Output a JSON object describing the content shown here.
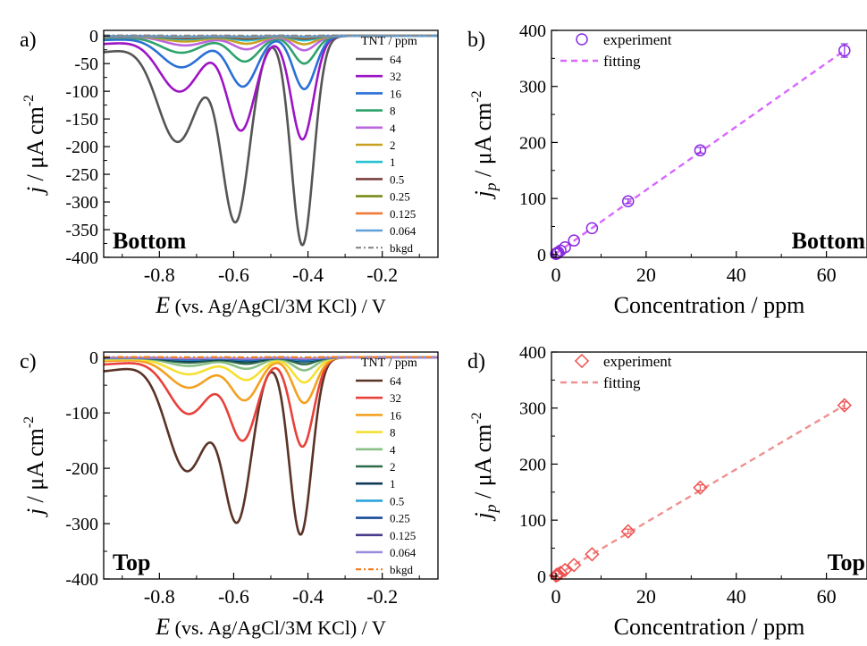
{
  "chart_data": [
    {
      "panel": "a)",
      "type": "line",
      "tag": "Bottom",
      "xlabel_sym": "E",
      "xlabel_rest": " (vs. Ag/AgCl/3M KCl) / V",
      "ylabel_sym": "j",
      "ylabel_rest": " / μA cm",
      "ylabel_sup": "-2",
      "xlim": [
        -0.95,
        -0.05
      ],
      "ylim": [
        -400,
        10
      ],
      "xticks": [
        -0.8,
        -0.6,
        -0.4,
        -0.2
      ],
      "yticks": [
        0,
        -50,
        -100,
        -150,
        -200,
        -250,
        -300,
        -350,
        -400
      ],
      "legend_title": "TNT / ppm",
      "series": [
        {
          "name": "64",
          "color": "#555555",
          "peaks": [
            [
              -0.75,
              188
            ],
            [
              -0.595,
              333
            ],
            [
              -0.415,
              378
            ]
          ]
        },
        {
          "name": "32",
          "color": "#9d14c4",
          "peaks": [
            [
              -0.745,
              99
            ],
            [
              -0.58,
              170
            ],
            [
              -0.415,
              187
            ]
          ]
        },
        {
          "name": "16",
          "color": "#2a6fd6",
          "peaks": [
            [
              -0.74,
              56
            ],
            [
              -0.575,
              91
            ],
            [
              -0.41,
              96
            ]
          ]
        },
        {
          "name": "8",
          "color": "#2ea36c",
          "peaks": [
            [
              -0.74,
              30
            ],
            [
              -0.57,
              46
            ],
            [
              -0.41,
              50
            ]
          ]
        },
        {
          "name": "4",
          "color": "#bb66dd",
          "peaks": [
            [
              -0.73,
              17
            ],
            [
              -0.565,
              24
            ],
            [
              -0.41,
              26
            ]
          ]
        },
        {
          "name": "2",
          "color": "#c8a020",
          "peaks": [
            [
              -0.73,
              10
            ],
            [
              -0.565,
              14
            ],
            [
              -0.41,
              15
            ]
          ]
        },
        {
          "name": "1",
          "color": "#22c2d0",
          "peaks": [
            [
              -0.73,
              6
            ],
            [
              -0.565,
              8
            ],
            [
              -0.41,
              8
            ]
          ]
        },
        {
          "name": "0.5",
          "color": "#7a4040",
          "peaks": [
            [
              -0.73,
              4
            ],
            [
              -0.565,
              5
            ],
            [
              -0.41,
              5
            ]
          ]
        },
        {
          "name": "0.25",
          "color": "#7a8a18",
          "peaks": [
            [
              -0.73,
              2.5
            ],
            [
              -0.565,
              3
            ],
            [
              -0.41,
              3
            ]
          ]
        },
        {
          "name": "0.125",
          "color": "#f07a3a",
          "peaks": [
            [
              -0.73,
              1.8
            ],
            [
              -0.565,
              2
            ],
            [
              -0.41,
              2
            ]
          ]
        },
        {
          "name": "0.064",
          "color": "#5f9fd8",
          "peaks": [
            [
              -0.73,
              1.2
            ],
            [
              -0.565,
              1.4
            ],
            [
              -0.41,
              1.4
            ]
          ]
        },
        {
          "name": "bkgd",
          "color": "#888888",
          "dashed": true,
          "peaks": [
            [
              -0.73,
              0.5
            ],
            [
              -0.565,
              0.6
            ],
            [
              -0.41,
              0.6
            ]
          ]
        }
      ]
    },
    {
      "panel": "b)",
      "type": "scatter",
      "tag": "Bottom",
      "xlabel": "Concentration / ppm",
      "ylabel_sym": "j",
      "ylabel_sub": "p",
      "ylabel_rest": " / μA cm",
      "ylabel_sup": "-2",
      "xlim": [
        -1,
        69
      ],
      "ylim": [
        -5,
        400
      ],
      "xticks": [
        0,
        20,
        40,
        60
      ],
      "yticks": [
        0,
        100,
        200,
        300,
        400
      ],
      "marker": "circle",
      "marker_color": "#8a2be2",
      "fit_color": "#d966ff",
      "legend": [
        "experiment",
        "fitting"
      ],
      "x": [
        0,
        0.064,
        0.125,
        0.25,
        0.5,
        1,
        2,
        4,
        8,
        16,
        32,
        64
      ],
      "y": [
        1,
        1.5,
        2,
        2.5,
        4,
        7,
        13,
        25,
        47,
        95,
        186,
        364
      ],
      "err": [
        0,
        0,
        0,
        0,
        0,
        0,
        0,
        0,
        0,
        4,
        5,
        12
      ],
      "fit": [
        [
          0,
          2
        ],
        [
          64,
          364
        ]
      ]
    },
    {
      "panel": "c)",
      "type": "line",
      "tag": "Top",
      "xlabel_sym": "E",
      "xlabel_rest": " (vs. Ag/AgCl/3M KCl) / V",
      "ylabel_sym": "j",
      "ylabel_rest": " / μA cm",
      "ylabel_sup": "-2",
      "xlim": [
        -0.95,
        -0.05
      ],
      "ylim": [
        -400,
        10
      ],
      "xticks": [
        -0.8,
        -0.6,
        -0.4,
        -0.2
      ],
      "yticks": [
        0,
        -100,
        -200,
        -300,
        -400
      ],
      "legend_title": "TNT / ppm",
      "series": [
        {
          "name": "64",
          "color": "#5a3326",
          "peaks": [
            [
              -0.725,
              203
            ],
            [
              -0.59,
              288
            ],
            [
              -0.42,
              320
            ]
          ]
        },
        {
          "name": "32",
          "color": "#e8403a",
          "peaks": [
            [
              -0.72,
              101
            ],
            [
              -0.575,
              147
            ],
            [
              -0.415,
              161
            ]
          ]
        },
        {
          "name": "16",
          "color": "#f4a020",
          "peaks": [
            [
              -0.72,
              54
            ],
            [
              -0.57,
              76
            ],
            [
              -0.41,
              82
            ]
          ]
        },
        {
          "name": "8",
          "color": "#f5e030",
          "peaks": [
            [
              -0.72,
              30
            ],
            [
              -0.565,
              40
            ],
            [
              -0.41,
              45
            ]
          ]
        },
        {
          "name": "4",
          "color": "#88c088",
          "peaks": [
            [
              -0.72,
              15
            ],
            [
              -0.565,
              20
            ],
            [
              -0.41,
              23
            ]
          ]
        },
        {
          "name": "2",
          "color": "#2c6a4a",
          "peaks": [
            [
              -0.72,
              9
            ],
            [
              -0.565,
              11
            ],
            [
              -0.41,
              12
            ]
          ]
        },
        {
          "name": "1",
          "color": "#103a5a",
          "peaks": [
            [
              -0.72,
              6
            ],
            [
              -0.565,
              7
            ],
            [
              -0.41,
              7
            ]
          ]
        },
        {
          "name": "0.5",
          "color": "#2aa3dc",
          "peaks": [
            [
              -0.72,
              4
            ],
            [
              -0.565,
              4.5
            ],
            [
              -0.41,
              5
            ]
          ]
        },
        {
          "name": "0.25",
          "color": "#1a4a9a",
          "peaks": [
            [
              -0.72,
              3
            ],
            [
              -0.565,
              3.5
            ],
            [
              -0.41,
              3.5
            ]
          ]
        },
        {
          "name": "0.125",
          "color": "#4a3a8a",
          "peaks": [
            [
              -0.72,
              2
            ],
            [
              -0.565,
              2.5
            ],
            [
              -0.41,
              2.5
            ]
          ]
        },
        {
          "name": "0.064",
          "color": "#9a8ae0",
          "peaks": [
            [
              -0.72,
              1.5
            ],
            [
              -0.565,
              1.8
            ],
            [
              -0.41,
              1.8
            ]
          ]
        },
        {
          "name": "bkgd",
          "color": "#f07a1a",
          "dashed": true,
          "peaks": [
            [
              -0.72,
              0.5
            ],
            [
              -0.565,
              0.6
            ],
            [
              -0.41,
              0.6
            ]
          ]
        }
      ]
    },
    {
      "panel": "d)",
      "type": "scatter",
      "tag": "Top",
      "xlabel": "Concentration / ppm",
      "ylabel_sym": "j",
      "ylabel_sub": "p",
      "ylabel_rest": " / μA cm",
      "ylabel_sup": "-2",
      "xlim": [
        -1,
        69
      ],
      "ylim": [
        -5,
        400
      ],
      "xticks": [
        0,
        20,
        40,
        60
      ],
      "yticks": [
        0,
        100,
        200,
        300,
        400
      ],
      "marker": "diamond",
      "marker_color": "#f05050",
      "fit_color": "#f09090",
      "legend": [
        "experiment",
        "fitting"
      ],
      "x": [
        0,
        0.064,
        0.125,
        0.25,
        0.5,
        1,
        2,
        4,
        8,
        16,
        32,
        64
      ],
      "y": [
        1,
        1.5,
        2,
        2.5,
        3,
        6,
        11,
        20,
        39,
        80,
        158,
        305
      ],
      "err": [
        0,
        0,
        0,
        0,
        0,
        0,
        0,
        0,
        0,
        4,
        5,
        6
      ],
      "fit": [
        [
          0,
          1
        ],
        [
          64,
          305
        ]
      ]
    }
  ]
}
